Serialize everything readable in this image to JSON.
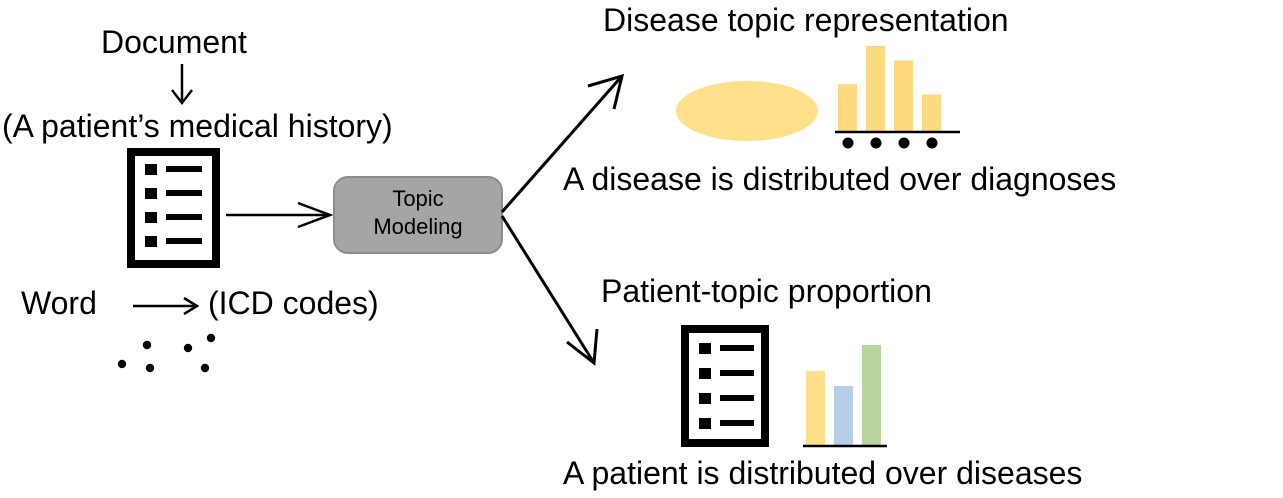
{
  "left": {
    "document_label": "Document",
    "history_label": "(A patient’s medical history)",
    "word_label": "Word",
    "icd_label": "(ICD codes)"
  },
  "center": {
    "topic_modeling_line1": "Topic",
    "topic_modeling_line2": "Modeling"
  },
  "right_top": {
    "title": "Disease topic representation",
    "caption": "A disease is distributed over diagnoses",
    "bar_color": "#fdd97f",
    "bar_values": [
      0.55,
      1.0,
      0.83,
      0.43
    ]
  },
  "right_bottom": {
    "title": "Patient-topic proportion",
    "caption": "A patient is distributed over diseases",
    "bars": [
      {
        "color": "#fedf8a",
        "value": 0.74
      },
      {
        "color": "#b5cfe9",
        "value": 0.59
      },
      {
        "color": "#b9d59f",
        "value": 1.0
      }
    ]
  },
  "colors": {
    "box_fill": "#a5a5a5",
    "box_stroke": "#8c8c8c",
    "ellipse_fill": "#fedf8a"
  }
}
